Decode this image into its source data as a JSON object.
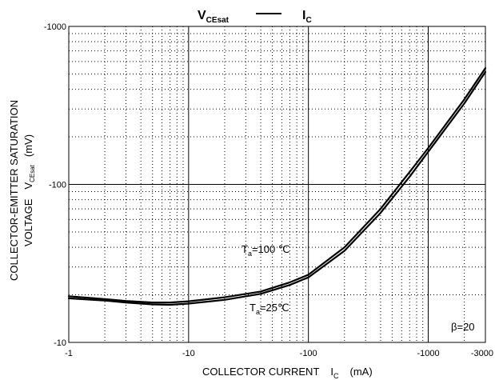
{
  "chart_data": {
    "type": "line",
    "title": {
      "left_main": "V",
      "left_sub": "CEsat",
      "dash": "—",
      "right_main": "I",
      "right_sub": "C"
    },
    "xlabel": {
      "main": "COLLECTOR CURRENT",
      "symbol": "I",
      "symbol_sub": "C",
      "unit": "(mA)"
    },
    "ylabel": {
      "line1": "COLLECTOR-EMITTER SATURATION",
      "line2_main": "VOLTAGE",
      "line2_symbol": "V",
      "line2_sub": "CEsat",
      "unit": "(mV)"
    },
    "x_scale": "log",
    "y_scale": "log",
    "x_axis_direction": "negative values, magnitude increasing to the right",
    "xlim": [
      -1,
      -3000
    ],
    "ylim": [
      -10,
      -1000
    ],
    "x_ticks": [
      "-1",
      "-10",
      "-100",
      "-1000",
      "-3000"
    ],
    "x_tick_values": [
      -1,
      -10,
      -100,
      -1000,
      -3000
    ],
    "y_ticks": [
      "-10",
      "-100",
      "-1000"
    ],
    "y_tick_values": [
      -10,
      -100,
      -1000
    ],
    "grid": true,
    "minor_grid": "dotted",
    "annotations": {
      "beta": "β=20",
      "ta100_main": "T",
      "ta100_sub": "a",
      "ta100_rest": "=100 ℃",
      "ta25_main": "T",
      "ta25_sub": "a",
      "ta25_rest": "=25℃"
    },
    "series": [
      {
        "name": "Ta=100℃",
        "x": [
          -1,
          -2,
          -3,
          -5,
          -7,
          -10,
          -20,
          -40,
          -70,
          -100,
          -200,
          -400,
          -700,
          -1000,
          -2000,
          -3000
        ],
        "y": [
          -19.6,
          -18.8,
          -18.3,
          -17.9,
          -17.9,
          -18.2,
          -19.3,
          -21.0,
          -24.0,
          -26.8,
          -40,
          -70,
          -120,
          -170,
          -345,
          -545
        ]
      },
      {
        "name": "Ta=25℃",
        "x": [
          -1,
          -2,
          -3,
          -5,
          -7,
          -10,
          -20,
          -40,
          -70,
          -100,
          -200,
          -400,
          -700,
          -1000,
          -2000,
          -3000
        ],
        "y": [
          -19.0,
          -18.4,
          -17.9,
          -17.4,
          -17.3,
          -17.6,
          -18.6,
          -20.3,
          -23.1,
          -25.8,
          -38,
          -66,
          -112,
          -161,
          -325,
          -515
        ]
      }
    ]
  }
}
